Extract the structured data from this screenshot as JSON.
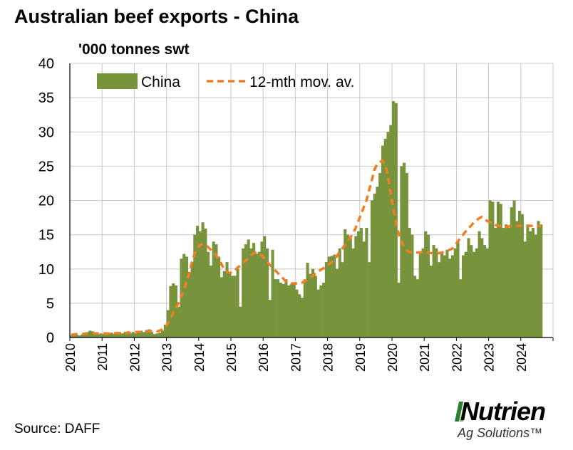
{
  "chart_title": "Australian beef exports - China",
  "unit_label": "'000 tonnes swt",
  "source": "Source: DAFF",
  "logo": {
    "name": "Nutrien",
    "subtitle": "Ag Solutions™",
    "colors": [
      "#7ab648",
      "#2e7d32"
    ]
  },
  "chart_data": {
    "type": "bar",
    "title": "Australian beef exports - China",
    "ylabel": "'000 tonnes swt",
    "ylim": [
      0,
      40
    ],
    "yticks": [
      0,
      5,
      10,
      15,
      20,
      25,
      30,
      35,
      40
    ],
    "xtick_labels": [
      "2010",
      "2011",
      "2012",
      "2013",
      "2014",
      "2015",
      "2016",
      "2017",
      "2018",
      "2019",
      "2020",
      "2021",
      "2022",
      "2023",
      "2024"
    ],
    "frequency": "monthly",
    "start": "2010-01",
    "grid": true,
    "legend_position": "top-left",
    "colors": {
      "China": "#77933c",
      "12-mth mov. av.": "#f07f24"
    },
    "series": [
      {
        "name": "China",
        "style": "bar",
        "values": [
          0.3,
          0.3,
          0.4,
          0.3,
          0.4,
          0.5,
          0.8,
          1.0,
          0.9,
          0.6,
          0.5,
          0.6,
          0.5,
          0.4,
          0.6,
          0.7,
          0.5,
          0.6,
          0.8,
          0.6,
          0.8,
          0.9,
          0.6,
          0.8,
          0.6,
          0.7,
          1.0,
          0.8,
          1.1,
          1.2,
          0.8,
          0.5,
          0.6,
          0.7,
          1.0,
          1.9,
          4.0,
          7.5,
          7.9,
          7.6,
          4.5,
          11.5,
          12.2,
          11.8,
          9.5,
          11.0,
          15.0,
          16.3,
          15.5,
          16.8,
          15.9,
          12.5,
          10.5,
          14.0,
          13.6,
          11.8,
          8.8,
          9.7,
          11.0,
          9.3,
          9.0,
          9.0,
          10.0,
          4.5,
          13.0,
          13.6,
          14.3,
          13.0,
          13.8,
          12.2,
          12.5,
          14.0,
          14.8,
          13.0,
          5.5,
          12.8,
          8.5,
          8.5,
          8.0,
          7.8,
          8.5,
          7.6,
          7.8,
          8.0,
          7.0,
          6.3,
          5.8,
          8.5,
          10.9,
          9.3,
          10.0,
          9.0,
          7.0,
          7.6,
          8.0,
          11.0,
          11.8,
          11.9,
          12.1,
          10.0,
          13.0,
          11.0,
          15.8,
          15.0,
          14.5,
          13.0,
          14.8,
          15.5,
          16.0,
          14.0,
          16.0,
          11.0,
          20.0,
          21.0,
          22.0,
          24.0,
          28.0,
          29.0,
          30.0,
          31.0,
          34.5,
          34.2,
          8.0,
          25.0,
          25.5,
          24.0,
          16.0,
          15.0,
          9.0,
          8.5,
          12.5,
          13.0,
          15.5,
          15.0,
          10.5,
          13.5,
          13.0,
          11.0,
          12.5,
          12.0,
          12.8,
          11.5,
          12.0,
          13.0,
          14.0,
          8.5,
          12.0,
          12.5,
          14.5,
          13.5,
          12.5,
          13.0,
          15.5,
          14.5,
          13.5,
          13.0,
          20.0,
          19.8,
          16.0,
          19.8,
          19.5,
          16.0,
          16.5,
          16.0,
          19.0,
          20.0,
          17.0,
          18.5,
          18.0,
          14.0,
          16.5,
          15.5,
          16.0,
          15.0,
          17.0,
          16.5
        ]
      },
      {
        "name": "12-mth mov. av.",
        "style": "dashed-line",
        "values": [
          0.4,
          0.45,
          0.5,
          0.5,
          0.5,
          0.55,
          0.55,
          0.6,
          0.6,
          0.6,
          0.6,
          0.6,
          0.6,
          0.6,
          0.6,
          0.6,
          0.6,
          0.65,
          0.65,
          0.65,
          0.65,
          0.7,
          0.7,
          0.75,
          0.8,
          0.8,
          0.8,
          0.8,
          0.85,
          0.9,
          0.9,
          0.9,
          0.9,
          1.0,
          1.2,
          1.5,
          2.0,
          2.8,
          3.5,
          4.3,
          5.0,
          6.0,
          7.0,
          8.2,
          9.5,
          11.0,
          12.2,
          13.0,
          13.5,
          13.6,
          13.5,
          13.2,
          12.8,
          12.5,
          12.0,
          11.4,
          10.7,
          10.0,
          9.6,
          9.4,
          9.5,
          9.8,
          10.2,
          10.5,
          10.9,
          11.2,
          11.6,
          12.0,
          12.3,
          12.4,
          12.3,
          12.0,
          11.5,
          11.0,
          10.6,
          10.2,
          9.8,
          9.4,
          9.0,
          8.6,
          8.2,
          8.0,
          7.9,
          7.9,
          7.9,
          8.0,
          8.0,
          8.2,
          8.5,
          8.8,
          9.0,
          9.3,
          9.6,
          9.9,
          10.1,
          10.4,
          10.7,
          11.0,
          11.4,
          11.9,
          12.5,
          13.0,
          13.5,
          14.0,
          14.6,
          15.2,
          16.0,
          17.0,
          18.0,
          19.0,
          20.0,
          21.5,
          23.0,
          24.5,
          25.3,
          25.6,
          25.8,
          25.2,
          23.5,
          21.0,
          18.8,
          16.8,
          15.2,
          14.0,
          13.2,
          12.7,
          12.5,
          12.4,
          12.4,
          12.4,
          12.4,
          12.4,
          12.4,
          12.4,
          12.3,
          12.3,
          12.3,
          12.3,
          12.4,
          12.5,
          12.6,
          12.8,
          13.0,
          13.5,
          14.0,
          14.5,
          15.0,
          15.5,
          16.0,
          16.3,
          16.8,
          17.1,
          17.4,
          17.6,
          17.3,
          17.0,
          16.8,
          16.5,
          16.4,
          16.3,
          16.2,
          16.1,
          16.1,
          16.2,
          16.3,
          16.3,
          16.3,
          16.3,
          16.3,
          16.3,
          16.3,
          16.3,
          16.3,
          16.3,
          16.3,
          16.2
        ]
      }
    ]
  }
}
